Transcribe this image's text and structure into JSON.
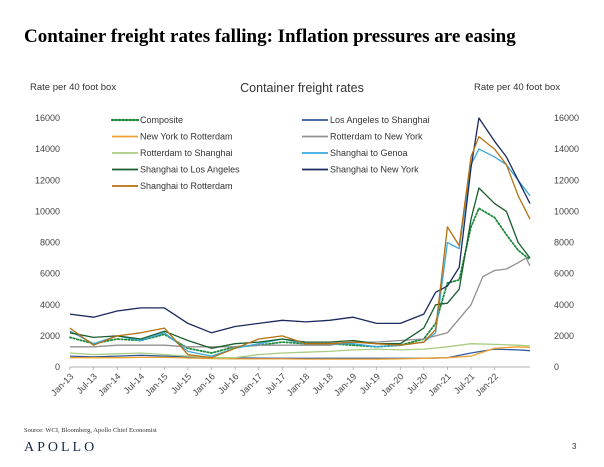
{
  "slide_title": "Container freight rates falling: Inflation pressures are easing",
  "source_note": "Source: WCI, Bloomberg, Apollo Chief Economist",
  "brand": "APOLLO",
  "page_number": "3",
  "chart_data": {
    "type": "line",
    "title": "Container freight rates",
    "ylabel_left": "Rate per 40 foot box",
    "ylabel_right": "Rate per 40 foot box",
    "ylim": [
      0,
      16000
    ],
    "yticks": [
      0,
      2000,
      4000,
      6000,
      8000,
      10000,
      12000,
      14000,
      16000
    ],
    "xlim": [
      "Jan-13",
      "Oct-22"
    ],
    "xticks": [
      "Jan-13",
      "Jul-13",
      "Jan-14",
      "Jul-14",
      "Jan-15",
      "Jul-15",
      "Jan-16",
      "Jul-16",
      "Jan-17",
      "Jul-17",
      "Jan-18",
      "Jul-18",
      "Jan-19",
      "Jul-19",
      "Jan-20",
      "Jul-20",
      "Jan-21",
      "Jul-21",
      "Jan-22"
    ],
    "grid": false,
    "legend_position": "top-left",
    "series": [
      {
        "name": "Composite",
        "color": "#1e8a3c",
        "style": "dotted",
        "x": [
          "Jan-13",
          "Jul-13",
          "Jan-14",
          "Jul-14",
          "Jan-15",
          "Jul-15",
          "Jan-16",
          "Jul-16",
          "Jan-17",
          "Jul-17",
          "Jan-18",
          "Jul-18",
          "Jan-19",
          "Jul-19",
          "Jan-20",
          "Jul-20",
          "Oct-20",
          "Jan-21",
          "Apr-21",
          "Jul-21",
          "Sep-21",
          "Jan-22",
          "Apr-22",
          "Jul-22",
          "Oct-22"
        ],
        "y": [
          1900,
          1500,
          1800,
          1700,
          2100,
          1200,
          900,
          1300,
          1400,
          1600,
          1500,
          1500,
          1400,
          1300,
          1400,
          1800,
          2800,
          5400,
          5600,
          9000,
          10200,
          9600,
          8500,
          7500,
          6900
        ]
      },
      {
        "name": "Los Angeles to Shanghai",
        "color": "#2e5a9c",
        "style": "solid",
        "x": [
          "Jan-13",
          "Jul-13",
          "Jan-14",
          "Jul-14",
          "Jan-15",
          "Jul-15",
          "Jan-16",
          "Jul-16",
          "Jan-17",
          "Jul-17",
          "Jan-18",
          "Jul-18",
          "Jan-19",
          "Jul-19",
          "Jan-20",
          "Jul-20",
          "Jan-21",
          "Jul-21",
          "Jan-22",
          "Jul-22",
          "Oct-22"
        ],
        "y": [
          700,
          650,
          700,
          750,
          700,
          650,
          600,
          580,
          570,
          560,
          560,
          560,
          560,
          560,
          560,
          560,
          600,
          900,
          1150,
          1100,
          1050
        ]
      },
      {
        "name": "New York to Rotterdam",
        "color": "#f0a030",
        "style": "solid",
        "x": [
          "Jan-13",
          "Jul-13",
          "Jan-14",
          "Jul-14",
          "Jan-15",
          "Jul-15",
          "Jan-16",
          "Jul-16",
          "Jan-17",
          "Jul-17",
          "Jan-18",
          "Jul-18",
          "Jan-19",
          "Jul-19",
          "Jan-20",
          "Jul-20",
          "Jan-21",
          "Jul-21",
          "Jan-22",
          "Jul-22",
          "Oct-22"
        ],
        "y": [
          600,
          600,
          600,
          620,
          620,
          580,
          540,
          520,
          520,
          520,
          510,
          510,
          510,
          510,
          520,
          560,
          600,
          700,
          1200,
          1300,
          1250
        ]
      },
      {
        "name": "Rotterdam to New York",
        "color": "#909090",
        "style": "solid",
        "x": [
          "Jan-13",
          "Jul-13",
          "Jan-14",
          "Jul-14",
          "Jan-15",
          "Jul-15",
          "Jan-16",
          "Jul-16",
          "Jan-17",
          "Jul-17",
          "Jan-18",
          "Jul-18",
          "Jan-19",
          "Jul-19",
          "Jan-20",
          "Jul-20",
          "Jan-21",
          "Jul-21",
          "Oct-21",
          "Jan-22",
          "Apr-22",
          "Jul-22",
          "Sep-22",
          "Oct-22"
        ],
        "y": [
          1300,
          1300,
          1400,
          1400,
          1400,
          1300,
          1300,
          1300,
          1400,
          1400,
          1400,
          1400,
          1600,
          1600,
          1700,
          1800,
          2200,
          4000,
          5800,
          6200,
          6300,
          6700,
          7000,
          6500
        ]
      },
      {
        "name": "Rotterdam to Shanghai",
        "color": "#a8cc80",
        "style": "solid",
        "x": [
          "Jan-13",
          "Jul-13",
          "Jan-14",
          "Jul-14",
          "Jan-15",
          "Jul-15",
          "Jan-16",
          "Jul-16",
          "Jan-17",
          "Jul-17",
          "Jan-18",
          "Jul-18",
          "Jan-19",
          "Jul-19",
          "Jan-20",
          "Jul-20",
          "Jan-21",
          "Jul-21",
          "Jan-22",
          "Jul-22",
          "Oct-22"
        ],
        "y": [
          900,
          800,
          850,
          900,
          800,
          700,
          600,
          600,
          800,
          900,
          950,
          1000,
          1100,
          1150,
          1100,
          1150,
          1300,
          1500,
          1450,
          1400,
          1350
        ]
      },
      {
        "name": "Shanghai to Genoa",
        "color": "#3aa8dc",
        "style": "solid",
        "x": [
          "Jan-13",
          "Jul-13",
          "Jan-14",
          "Jul-14",
          "Jan-15",
          "Jul-15",
          "Jan-16",
          "Jul-16",
          "Jan-17",
          "Jul-17",
          "Jan-18",
          "Jul-18",
          "Jan-19",
          "Jul-19",
          "Jan-20",
          "Jul-20",
          "Oct-20",
          "Jan-21",
          "Apr-21",
          "Jul-21",
          "Sep-21",
          "Jan-22",
          "Apr-22",
          "Jul-22",
          "Oct-22"
        ],
        "y": [
          2300,
          1500,
          2000,
          1700,
          2200,
          1000,
          700,
          1200,
          1500,
          1800,
          1500,
          1500,
          1500,
          1300,
          1400,
          1600,
          2200,
          8000,
          7600,
          13000,
          14000,
          13500,
          13000,
          12000,
          11000
        ]
      },
      {
        "name": "Shanghai to Los Angeles",
        "color": "#1a5e2e",
        "style": "solid",
        "x": [
          "Jan-13",
          "Jul-13",
          "Jan-14",
          "Jul-14",
          "Jan-15",
          "Jul-15",
          "Jan-16",
          "Jul-16",
          "Jan-17",
          "Jul-17",
          "Jan-18",
          "Jul-18",
          "Jan-19",
          "Jul-19",
          "Jan-20",
          "Jul-20",
          "Oct-20",
          "Jan-21",
          "Apr-21",
          "Jul-21",
          "Sep-21",
          "Jan-22",
          "Apr-22",
          "Jul-22",
          "Oct-22"
        ],
        "y": [
          2200,
          1900,
          2000,
          1800,
          2300,
          1700,
          1200,
          1500,
          1600,
          1800,
          1600,
          1600,
          1700,
          1500,
          1500,
          2500,
          4000,
          4100,
          5000,
          9500,
          11500,
          10500,
          10000,
          8000,
          7000
        ]
      },
      {
        "name": "Shanghai to New York",
        "color": "#1a2a5e",
        "style": "solid",
        "x": [
          "Jan-13",
          "Jul-13",
          "Jan-14",
          "Jul-14",
          "Jan-15",
          "Jul-15",
          "Jan-16",
          "Jul-16",
          "Jan-17",
          "Jul-17",
          "Jan-18",
          "Jul-18",
          "Jan-19",
          "Jul-19",
          "Jan-20",
          "Jul-20",
          "Oct-20",
          "Jan-21",
          "Apr-21",
          "Jul-21",
          "Sep-21",
          "Jan-22",
          "Apr-22",
          "Jul-22",
          "Oct-22"
        ],
        "y": [
          3400,
          3200,
          3600,
          3800,
          3800,
          2800,
          2200,
          2600,
          2800,
          3000,
          2900,
          3000,
          3200,
          2800,
          2800,
          3400,
          4800,
          5200,
          6400,
          12800,
          16000,
          14500,
          13500,
          12000,
          10500
        ]
      },
      {
        "name": "Shanghai to Rotterdam",
        "color": "#b5700f",
        "style": "solid",
        "x": [
          "Jan-13",
          "Jul-13",
          "Jan-14",
          "Jul-14",
          "Jan-15",
          "Jul-15",
          "Jan-16",
          "Jul-16",
          "Jan-17",
          "Jul-17",
          "Jan-18",
          "Jul-18",
          "Jan-19",
          "Jul-19",
          "Jan-20",
          "Jul-20",
          "Oct-20",
          "Jan-21",
          "Apr-21",
          "Jul-21",
          "Sep-21",
          "Jan-22",
          "Apr-22",
          "Jul-22",
          "Oct-22"
        ],
        "y": [
          2500,
          1400,
          2000,
          2200,
          2500,
          800,
          600,
          1200,
          1800,
          2000,
          1500,
          1500,
          1600,
          1500,
          1400,
          1600,
          2400,
          9000,
          7800,
          13500,
          14800,
          14000,
          13000,
          11000,
          9500
        ]
      }
    ]
  }
}
